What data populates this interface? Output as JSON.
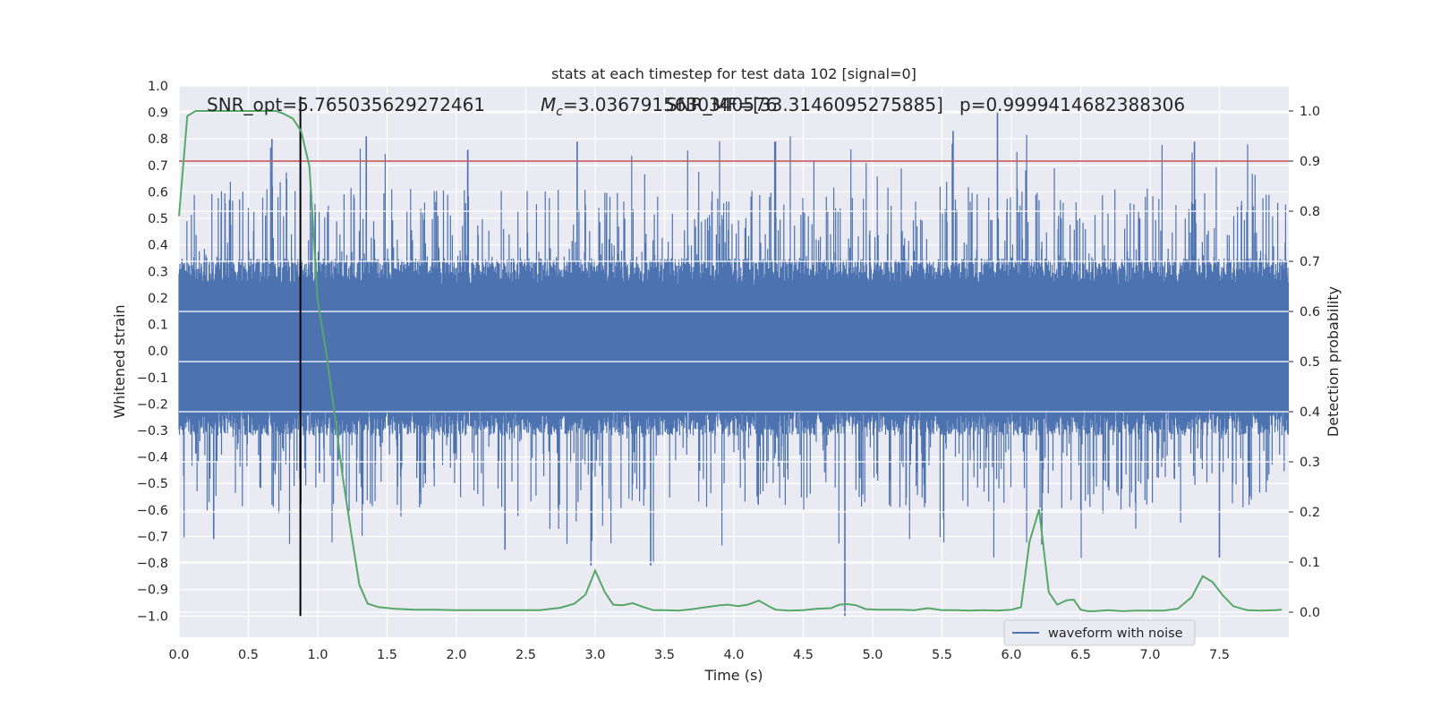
{
  "chart_data": {
    "type": "line",
    "title": "stats at each timestep for test data 102 [signal=0]",
    "xlabel": "Time (s)",
    "ylabel_left": "Whitened strain",
    "ylabel_right": "Detection probability",
    "xlim": [
      0,
      8
    ],
    "ylim_left": [
      -1.08,
      1.0
    ],
    "ylim_right": [
      -0.05,
      1.05
    ],
    "xticks": [
      "0.0",
      "0.5",
      "1.0",
      "1.5",
      "2.0",
      "2.5",
      "3.0",
      "3.5",
      "4.0",
      "4.5",
      "5.0",
      "5.5",
      "6.0",
      "6.5",
      "7.0",
      "7.5"
    ],
    "yticks_left": [
      "1.0",
      "0.9",
      "0.8",
      "0.7",
      "0.6",
      "0.5",
      "0.4",
      "0.3",
      "0.2",
      "0.1",
      "0.0",
      "−0.1",
      "−0.2",
      "−0.3",
      "−0.4",
      "−0.5",
      "−0.6",
      "−0.7",
      "−0.8",
      "−0.9",
      "−1.0"
    ],
    "yticks_right": [
      "0.0",
      "0.1",
      "0.2",
      "0.3",
      "0.4",
      "0.5",
      "0.6",
      "0.7",
      "0.8",
      "0.9",
      "1.0"
    ],
    "grid": true,
    "legend_position": "lower-right",
    "annotations": {
      "snr_opt": "SNR_opt=5.765035629272461",
      "mc": "=3.0367915630340576",
      "snr_mf": "SNR_MF=[33.3146095275885]",
      "p": "p=0.9999414682388306"
    },
    "colors": {
      "waveform": "#4c72b0",
      "probability": "#55a868",
      "threshold": "#c44e52",
      "marker": "#000000",
      "plot_bg": "#eaeaf2"
    },
    "series": [
      {
        "name": "waveform with noise",
        "axis": "left",
        "style": "dense-noise",
        "typical_band": [
          -0.3,
          0.32
        ],
        "range": [
          -1.0,
          0.9
        ]
      },
      {
        "axis": "right",
        "x": [
          0.0,
          0.06,
          0.12,
          0.2,
          0.3,
          0.4,
          0.5,
          0.6,
          0.7,
          0.75,
          0.82,
          0.88,
          0.94,
          1.0,
          1.06,
          1.12,
          1.18,
          1.24,
          1.3,
          1.36,
          1.44,
          1.55,
          1.7,
          1.85,
          2.0,
          2.2,
          2.4,
          2.6,
          2.75,
          2.85,
          2.93,
          3.0,
          3.07,
          3.13,
          3.2,
          3.27,
          3.35,
          3.42,
          3.5,
          3.6,
          3.7,
          3.8,
          3.9,
          3.96,
          4.03,
          4.1,
          4.18,
          4.25,
          4.3,
          4.4,
          4.5,
          4.6,
          4.7,
          4.76,
          4.82,
          4.88,
          4.95,
          5.05,
          5.2,
          5.3,
          5.4,
          5.5,
          5.6,
          5.7,
          5.8,
          5.9,
          6.0,
          6.07,
          6.13,
          6.2,
          6.27,
          6.33,
          6.4,
          6.45,
          6.5,
          6.55,
          6.6,
          6.7,
          6.8,
          6.9,
          7.0,
          7.1,
          7.2,
          7.3,
          7.38,
          7.45,
          7.52,
          7.6,
          7.7,
          7.8,
          7.9,
          7.95
        ],
        "y": [
          0.79,
          0.99,
          1.0,
          1.0,
          1.0,
          1.0,
          1.0,
          1.0,
          1.0,
          0.995,
          0.985,
          0.96,
          0.89,
          0.62,
          0.52,
          0.4,
          0.27,
          0.16,
          0.055,
          0.017,
          0.01,
          0.007,
          0.005,
          0.005,
          0.004,
          0.004,
          0.004,
          0.004,
          0.009,
          0.017,
          0.035,
          0.083,
          0.04,
          0.015,
          0.014,
          0.018,
          0.01,
          0.004,
          0.004,
          0.003,
          0.006,
          0.01,
          0.014,
          0.015,
          0.012,
          0.015,
          0.023,
          0.012,
          0.005,
          0.003,
          0.004,
          0.007,
          0.008,
          0.015,
          0.016,
          0.014,
          0.006,
          0.005,
          0.005,
          0.004,
          0.008,
          0.004,
          0.004,
          0.003,
          0.004,
          0.003,
          0.005,
          0.01,
          0.14,
          0.205,
          0.04,
          0.015,
          0.024,
          0.025,
          0.005,
          0.002,
          0.002,
          0.004,
          0.002,
          0.003,
          0.003,
          0.003,
          0.007,
          0.03,
          0.072,
          0.06,
          0.035,
          0.012,
          0.004,
          0.003,
          0.004,
          0.005
        ]
      },
      {
        "axis": "right",
        "style": "threshold",
        "value": 0.9
      }
    ],
    "marker_x": 0.875
  }
}
